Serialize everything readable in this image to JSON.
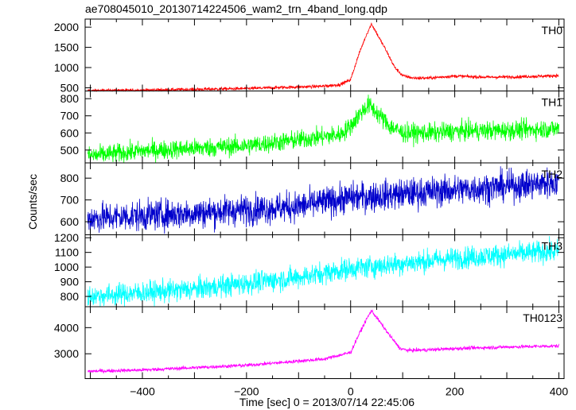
{
  "chart_data": {
    "type": "line",
    "title": "ae708045010_20130714224506_wam2_trn_4band_long.qdp",
    "xlabel": "Time [sec] 0 = 2013/07/14 22:45:06",
    "ylabel": "Counts/sec",
    "xlim": [
      -510,
      410
    ],
    "xticks": [
      -400,
      -200,
      0,
      200,
      400
    ],
    "grid": false,
    "panels": [
      {
        "name": "TH0",
        "color": "#ff0000",
        "ylim": [
          420,
          2200
        ],
        "yticks": [
          500,
          1000,
          1500,
          2000
        ],
        "noise": 20,
        "points": [
          [
            -505,
            430
          ],
          [
            -400,
            440
          ],
          [
            -200,
            480
          ],
          [
            -50,
            540
          ],
          [
            -20,
            580
          ],
          [
            0,
            700
          ],
          [
            15,
            1300
          ],
          [
            30,
            1800
          ],
          [
            40,
            2080
          ],
          [
            50,
            1850
          ],
          [
            65,
            1500
          ],
          [
            85,
            1000
          ],
          [
            100,
            800
          ],
          [
            120,
            740
          ],
          [
            150,
            740
          ],
          [
            200,
            790
          ],
          [
            260,
            760
          ],
          [
            320,
            770
          ],
          [
            400,
            800
          ]
        ]
      },
      {
        "name": "TH1",
        "color": "#00ff00",
        "ylim": [
          425,
          845
        ],
        "yticks": [
          500,
          600,
          700,
          800
        ],
        "noise": 28,
        "points": [
          [
            -505,
            465
          ],
          [
            -400,
            495
          ],
          [
            -200,
            525
          ],
          [
            -100,
            560
          ],
          [
            -20,
            590
          ],
          [
            0,
            640
          ],
          [
            20,
            720
          ],
          [
            35,
            765
          ],
          [
            50,
            720
          ],
          [
            75,
            640
          ],
          [
            100,
            600
          ],
          [
            130,
            600
          ],
          [
            160,
            600
          ],
          [
            200,
            610
          ],
          [
            300,
            615
          ],
          [
            400,
            625
          ]
        ]
      },
      {
        "name": "TH2",
        "color": "#0000cc",
        "ylim": [
          540,
          870
        ],
        "yticks": [
          600,
          700,
          800
        ],
        "noise": 35,
        "points": [
          [
            -505,
            615
          ],
          [
            -300,
            640
          ],
          [
            -100,
            670
          ],
          [
            0,
            710
          ],
          [
            200,
            745
          ],
          [
            400,
            780
          ]
        ]
      },
      {
        "name": "TH3",
        "color": "#00ffff",
        "ylim": [
          730,
          1220
        ],
        "yticks": [
          800,
          900,
          1000,
          1100,
          1200
        ],
        "noise": 38,
        "points": [
          [
            -505,
            800
          ],
          [
            -300,
            850
          ],
          [
            -100,
            930
          ],
          [
            0,
            990
          ],
          [
            200,
            1060
          ],
          [
            400,
            1110
          ]
        ]
      },
      {
        "name": "TH0123",
        "color": "#ff00ff",
        "ylim": [
          2050,
          4800
        ],
        "yticks": [
          3000,
          4000
        ],
        "noise": 35,
        "points": [
          [
            -505,
            2330
          ],
          [
            -400,
            2380
          ],
          [
            -200,
            2560
          ],
          [
            -50,
            2800
          ],
          [
            0,
            3050
          ],
          [
            15,
            3700
          ],
          [
            30,
            4300
          ],
          [
            40,
            4650
          ],
          [
            55,
            4250
          ],
          [
            75,
            3700
          ],
          [
            95,
            3200
          ],
          [
            110,
            3130
          ],
          [
            150,
            3150
          ],
          [
            200,
            3200
          ],
          [
            300,
            3260
          ],
          [
            400,
            3300
          ]
        ]
      }
    ]
  }
}
